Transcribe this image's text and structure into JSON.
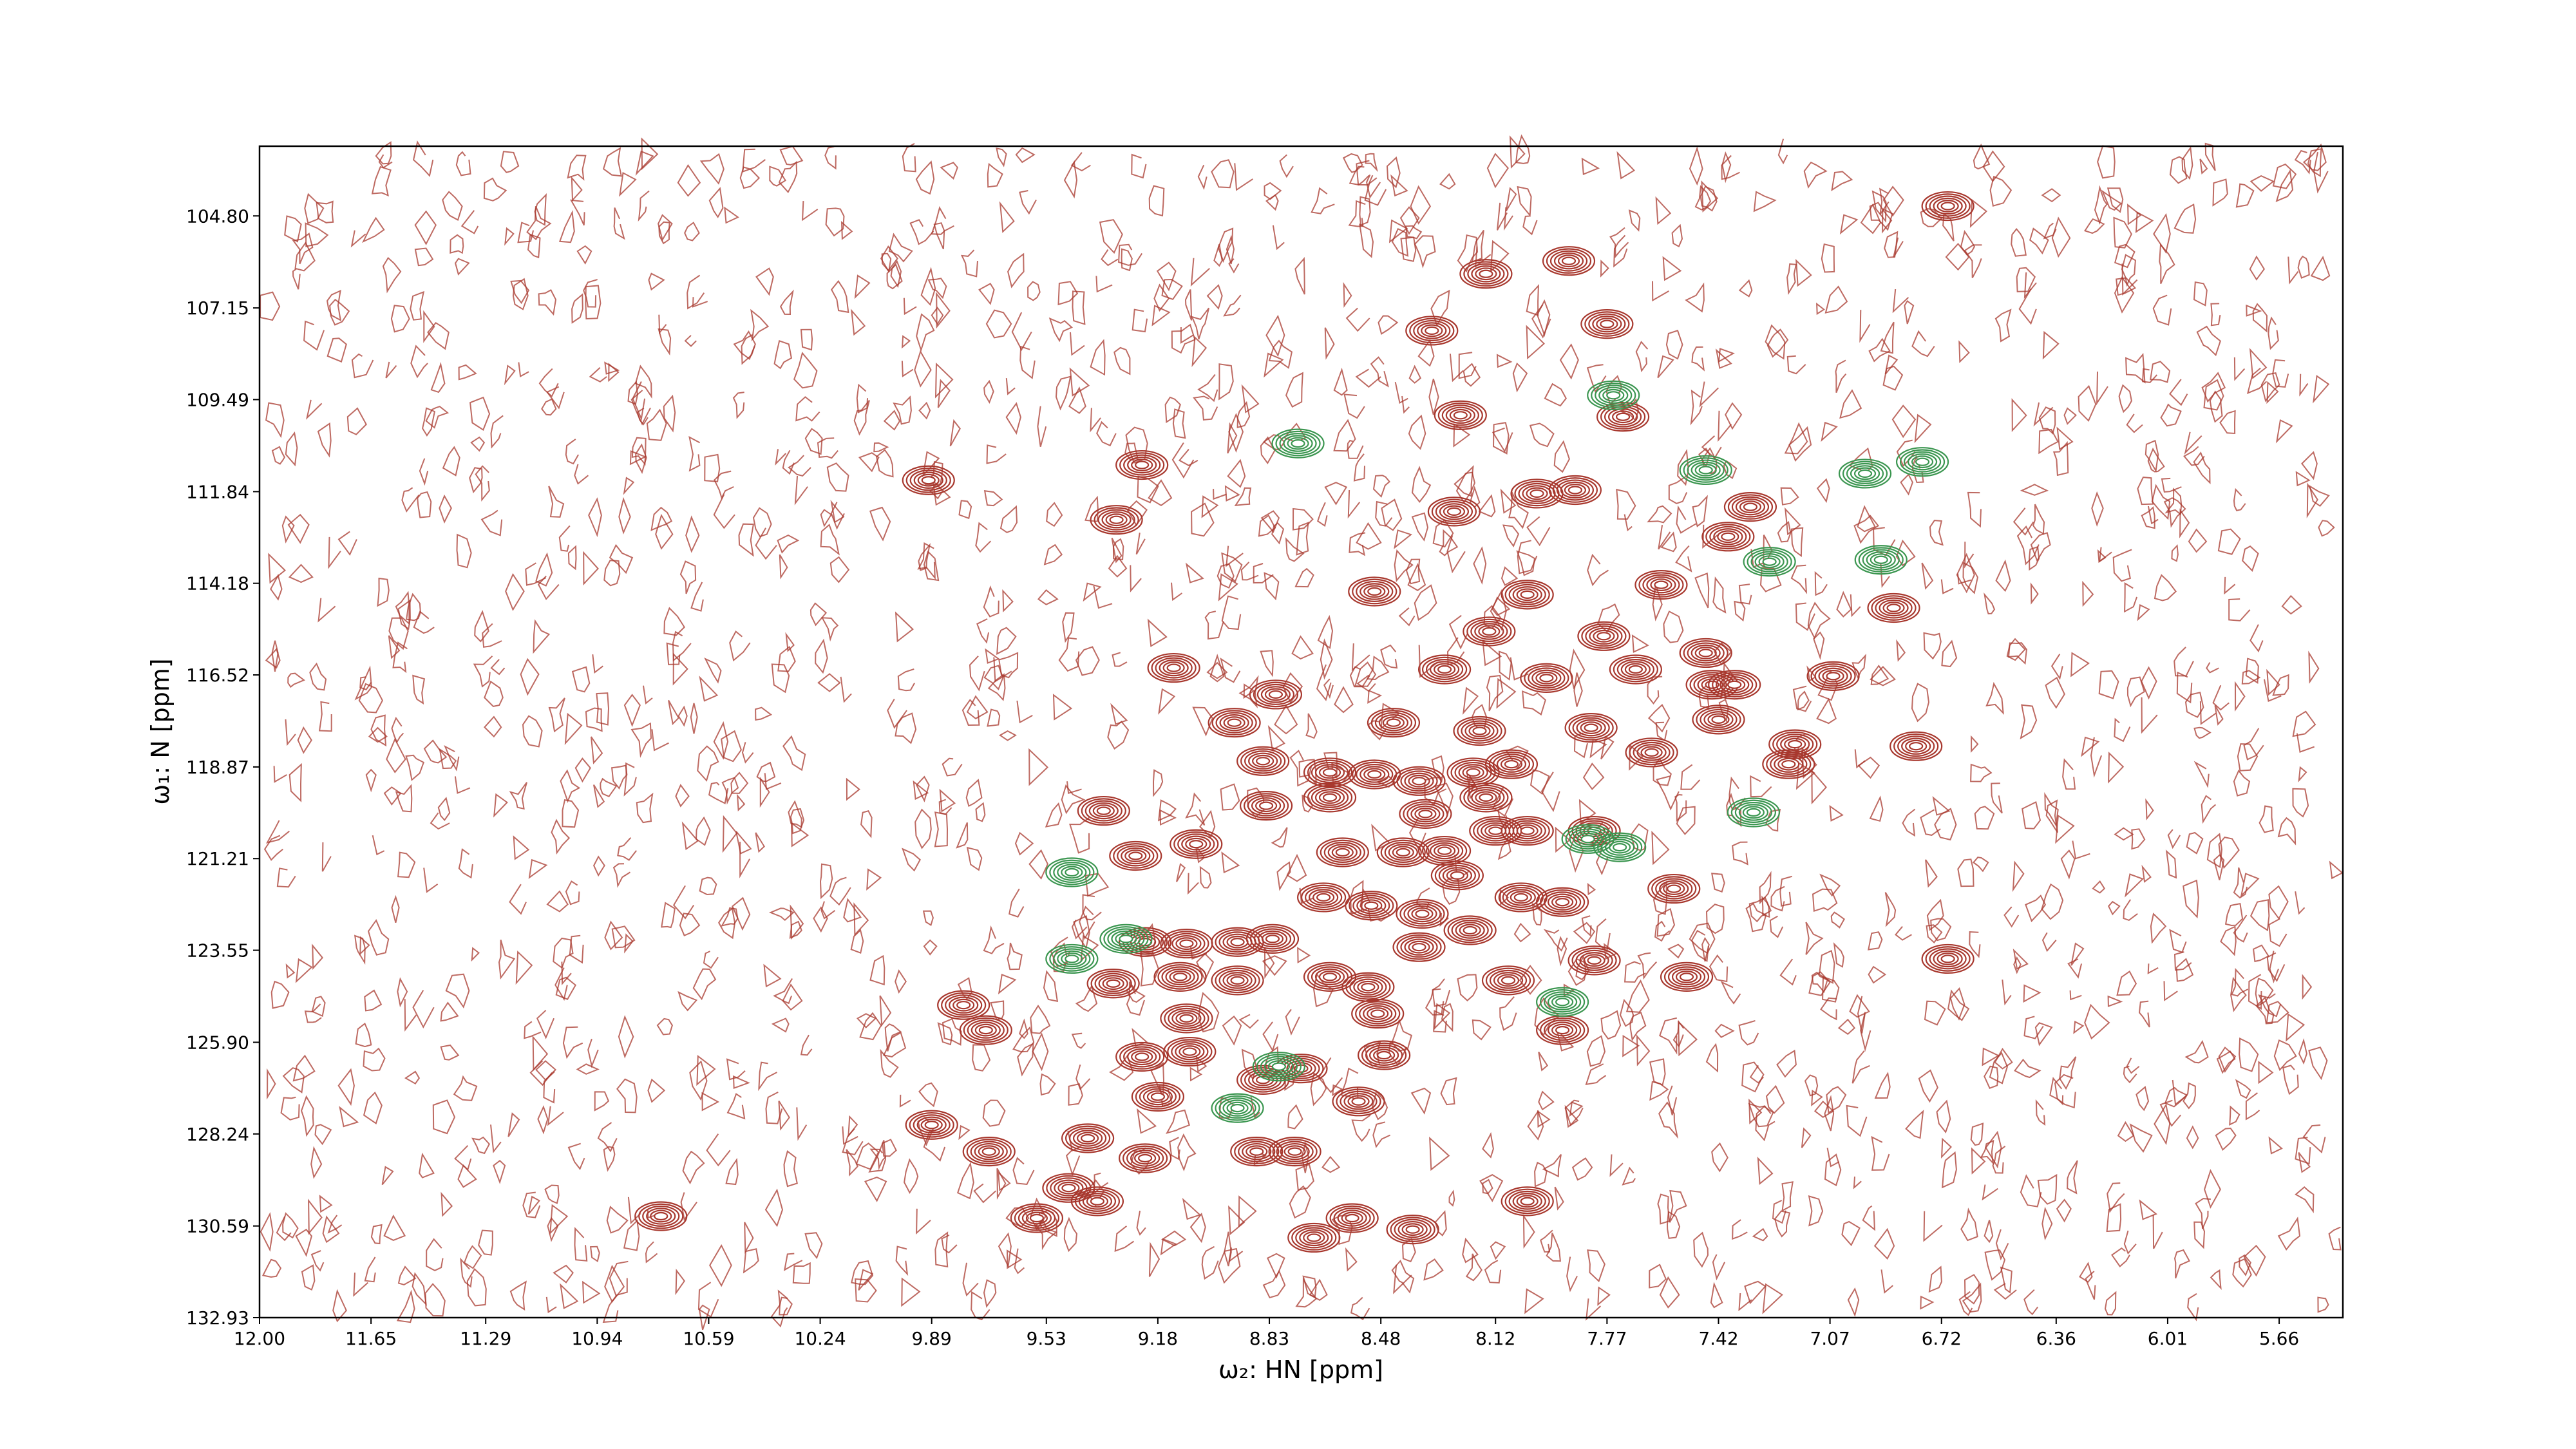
{
  "chart_data": {
    "type": "contour",
    "x_label": "ω₂: HN [ppm]",
    "y_label": "ω₁: N [ppm]",
    "xlim": [
      12.0,
      5.46
    ],
    "ylim": [
      132.93,
      103.02
    ],
    "xticks": [
      {
        "value": 12.0,
        "label": "12.00"
      },
      11.65,
      11.29,
      10.94,
      10.59,
      10.24,
      9.89,
      9.53,
      9.18,
      8.83,
      8.48,
      8.12,
      7.77,
      7.42,
      7.07,
      6.72,
      6.36,
      6.01,
      5.66
    ],
    "yticks": [
      {
        "value": 104.8,
        "label": "104.80"
      },
      107.15,
      109.49,
      111.84,
      114.18,
      116.52,
      118.87,
      121.21,
      123.55,
      {
        "value": 125.9,
        "label": "125.90"
      },
      128.24,
      130.59,
      132.93
    ],
    "series": [
      {
        "color": "#a8382e",
        "x": [
          6.7,
          8.15,
          7.89,
          8.32,
          7.77,
          8.23,
          7.72,
          9.23,
          9.9,
          9.31,
          8.25,
          7.99,
          7.87,
          7.32,
          7.39,
          8.5,
          8.02,
          7.6,
          6.87,
          8.14,
          7.78,
          7.46,
          9.13,
          8.28,
          7.96,
          7.68,
          7.44,
          7.37,
          7.06,
          8.81,
          8.94,
          8.44,
          8.17,
          7.82,
          7.42,
          7.63,
          7.18,
          7.2,
          6.8,
          8.85,
          8.64,
          8.5,
          8.36,
          8.19,
          8.07,
          8.84,
          8.64,
          8.34,
          8.15,
          9.35,
          9.06,
          9.25,
          8.6,
          8.41,
          8.28,
          8.12,
          8.02,
          7.81,
          8.24,
          8.66,
          8.51,
          8.35,
          8.04,
          7.91,
          7.56,
          9.22,
          9.09,
          8.93,
          8.82,
          8.36,
          8.2,
          7.81,
          7.52,
          6.7,
          9.32,
          9.11,
          8.93,
          8.64,
          8.52,
          8.08,
          9.79,
          9.72,
          9.09,
          8.49,
          7.91,
          9.23,
          9.08,
          8.85,
          8.73,
          8.47,
          9.18,
          8.55,
          9.89,
          9.4,
          9.71,
          9.22,
          8.87,
          8.75,
          9.46,
          8.02,
          9.37,
          9.56,
          8.57,
          10.74,
          8.69,
          8.38
        ],
        "y": [
          104.55,
          106.28,
          105.95,
          107.73,
          107.56,
          109.89,
          109.93,
          111.16,
          111.55,
          112.56,
          112.35,
          111.89,
          111.8,
          112.23,
          112.99,
          114.39,
          114.47,
          114.22,
          114.81,
          115.41,
          115.53,
          115.96,
          116.34,
          116.38,
          116.6,
          116.38,
          116.77,
          116.77,
          116.55,
          117.02,
          117.74,
          117.74,
          117.95,
          117.87,
          117.66,
          118.5,
          118.29,
          118.8,
          118.34,
          118.72,
          119.01,
          119.06,
          119.23,
          119.01,
          118.8,
          119.86,
          119.65,
          120.07,
          119.65,
          119.99,
          120.84,
          121.14,
          121.05,
          121.05,
          121.01,
          120.5,
          120.5,
          120.5,
          121.64,
          122.2,
          122.41,
          122.62,
          122.2,
          122.32,
          121.98,
          123.34,
          123.38,
          123.34,
          123.26,
          123.47,
          123.04,
          123.81,
          124.23,
          123.77,
          124.4,
          124.23,
          124.32,
          124.23,
          124.49,
          124.32,
          124.95,
          125.59,
          125.29,
          125.17,
          125.59,
          126.27,
          126.14,
          126.86,
          126.57,
          126.23,
          127.29,
          127.41,
          128.01,
          128.35,
          128.69,
          128.86,
          128.69,
          128.69,
          129.62,
          129.96,
          129.96,
          130.39,
          130.39,
          130.34,
          130.89,
          130.68
        ]
      },
      {
        "color": "#3b9650",
        "x": [
          8.74,
          7.75,
          7.46,
          6.78,
          6.96,
          6.91,
          7.26,
          7.31,
          9.45,
          9.28,
          7.83,
          7.73,
          8.93,
          8.8,
          9.45,
          7.91
        ],
        "y": [
          110.61,
          109.38,
          111.29,
          111.08,
          111.38,
          113.58,
          113.63,
          120.03,
          121.56,
          123.26,
          120.71,
          120.92,
          127.58,
          126.52,
          123.77,
          124.87
        ]
      }
    ]
  }
}
